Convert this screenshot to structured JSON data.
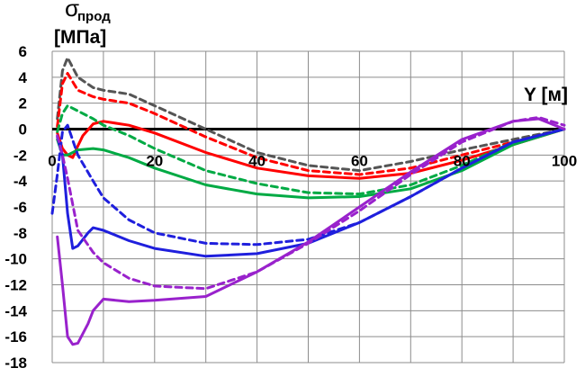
{
  "chart_data": {
    "type": "line",
    "y_title_symbol": "σ",
    "y_title_subscript": "прод",
    "y_title_unit": "[МПа]",
    "x_title": "Y [м]",
    "xlim": [
      0,
      100
    ],
    "ylim": [
      -18,
      6
    ],
    "x_ticks": [
      0,
      20,
      40,
      60,
      80,
      100
    ],
    "y_ticks": [
      6,
      4,
      2,
      0,
      -2,
      -4,
      -6,
      -8,
      -10,
      -12,
      -14,
      -16,
      -18
    ],
    "x_grid_step": 10,
    "y_grid_step": 2,
    "grid": true,
    "series": [
      {
        "color": "#555555",
        "dash": true,
        "x": [
          1,
          2,
          3,
          5,
          8,
          10,
          15,
          20,
          30,
          40,
          50,
          60,
          70,
          80,
          90,
          100
        ],
        "y": [
          0.8,
          4.5,
          5.5,
          4.0,
          3.2,
          3.0,
          2.7,
          1.8,
          0.0,
          -1.8,
          -2.8,
          -3.2,
          -2.5,
          -1.6,
          -0.8,
          0.0
        ]
      },
      {
        "color": "#ff0000",
        "dash": true,
        "x": [
          1,
          2,
          3,
          5,
          8,
          10,
          15,
          20,
          30,
          40,
          50,
          60,
          70,
          80,
          90,
          100
        ],
        "y": [
          0.2,
          3.5,
          4.3,
          3.0,
          2.5,
          2.3,
          2.0,
          1.2,
          -0.6,
          -2.2,
          -3.2,
          -3.5,
          -3.0,
          -2.0,
          -1.0,
          0.0
        ]
      },
      {
        "color": "#ff0000",
        "dash": false,
        "x": [
          1,
          2,
          3,
          4,
          5,
          6,
          8,
          10,
          15,
          20,
          30,
          40,
          50,
          60,
          70,
          80,
          90,
          100
        ],
        "y": [
          -0.3,
          -1.5,
          -2.0,
          -2.2,
          -1.3,
          -0.5,
          0.4,
          0.6,
          0.3,
          -0.3,
          -1.8,
          -3.0,
          -3.6,
          -3.8,
          -3.4,
          -2.4,
          -1.2,
          0.0
        ]
      },
      {
        "color": "#00aa44",
        "dash": true,
        "x": [
          1,
          2,
          3,
          5,
          8,
          10,
          15,
          20,
          30,
          40,
          50,
          60,
          70,
          80,
          90,
          100
        ],
        "y": [
          -0.2,
          1.2,
          1.8,
          1.4,
          0.8,
          0.3,
          -0.5,
          -1.5,
          -3.2,
          -4.2,
          -4.9,
          -5.0,
          -4.3,
          -2.8,
          -1.0,
          0.0
        ]
      },
      {
        "color": "#00aa44",
        "dash": false,
        "x": [
          1,
          2,
          3,
          5,
          8,
          10,
          15,
          20,
          30,
          40,
          50,
          60,
          70,
          80,
          90,
          100
        ],
        "y": [
          -0.8,
          -2.0,
          -2.0,
          -1.6,
          -1.5,
          -1.6,
          -2.2,
          -3.0,
          -4.3,
          -5.0,
          -5.3,
          -5.2,
          -4.6,
          -3.2,
          -1.2,
          0.0
        ]
      },
      {
        "color": "#1f1fdd",
        "dash": true,
        "x": [
          0,
          1,
          2,
          3,
          5,
          8,
          10,
          15,
          20,
          30,
          40,
          50,
          60,
          70,
          80,
          90,
          100
        ],
        "y": [
          -6.5,
          -3.5,
          -0.2,
          0.3,
          -2.0,
          -4.0,
          -5.3,
          -7.0,
          -8.0,
          -8.8,
          -8.9,
          -8.5,
          -7.2,
          -5.2,
          -3.0,
          -1.0,
          0.0
        ]
      },
      {
        "color": "#1f1fdd",
        "dash": false,
        "x": [
          1,
          2,
          3,
          4,
          5,
          7,
          8,
          10,
          15,
          20,
          30,
          40,
          50,
          60,
          70,
          80,
          90,
          100
        ],
        "y": [
          -0.6,
          -2.0,
          -6.5,
          -9.2,
          -9.0,
          -8.0,
          -7.6,
          -7.8,
          -8.6,
          -9.2,
          -9.8,
          -9.6,
          -8.8,
          -7.2,
          -5.2,
          -3.0,
          -1.0,
          0.0
        ]
      },
      {
        "color": "#9922cc",
        "dash": true,
        "x": [
          1,
          2,
          3,
          5,
          8,
          10,
          15,
          20,
          30,
          40,
          50,
          60,
          70,
          80,
          90,
          95,
          100
        ],
        "y": [
          -0.5,
          -2.0,
          -3.8,
          -7.8,
          -9.5,
          -10.3,
          -11.5,
          -12.1,
          -12.3,
          -11.0,
          -8.8,
          -6.3,
          -3.5,
          -1.0,
          0.6,
          0.9,
          0.3
        ]
      },
      {
        "color": "#9922cc",
        "dash": false,
        "x": [
          1,
          2,
          3,
          4,
          5,
          7,
          8,
          10,
          15,
          20,
          30,
          40,
          50,
          60,
          70,
          80,
          90,
          95,
          100
        ],
        "y": [
          -8.3,
          -12.0,
          -16.0,
          -16.6,
          -16.5,
          -15.0,
          -14.0,
          -13.1,
          -13.3,
          -13.2,
          -12.9,
          -11.0,
          -8.7,
          -6.0,
          -3.3,
          -0.8,
          0.6,
          0.8,
          0.0
        ]
      }
    ]
  }
}
